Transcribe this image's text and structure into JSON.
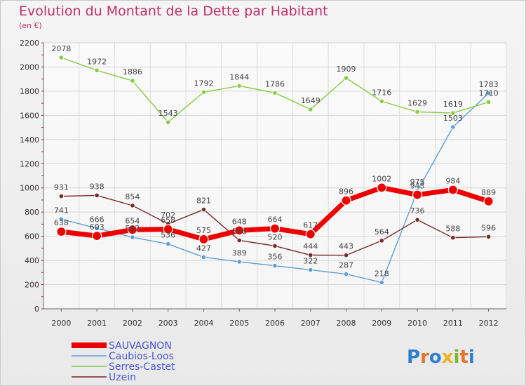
{
  "chart_data": {
    "type": "line",
    "title": "Evolution du Montant de la Dette par Habitant",
    "subtitle": "(en €)",
    "x": [
      "2000",
      "2001",
      "2002",
      "2003",
      "2004",
      "2005",
      "2006",
      "2007",
      "2008",
      "2009",
      "2010",
      "2011",
      "2012"
    ],
    "ylim": [
      0,
      2200
    ],
    "yticks": [
      0,
      200,
      400,
      600,
      800,
      1000,
      1200,
      1400,
      1600,
      1800,
      2000,
      2200
    ],
    "grid": true,
    "legend_position": "bottom-left",
    "series": [
      {
        "name": "SAUVAGNON",
        "color": "#ee0000",
        "emphasis": true,
        "values": [
          638,
          603,
          654,
          658,
          575,
          648,
          664,
          617,
          896,
          1002,
          943,
          984,
          889
        ]
      },
      {
        "name": "Caubios-Loos",
        "color": "#5c9ed8",
        "values": [
          741,
          666,
          592,
          536,
          427,
          389,
          356,
          322,
          287,
          218,
          975,
          1503,
          1783
        ]
      },
      {
        "name": "Serres-Castet",
        "color": "#88cc44",
        "values": [
          2078,
          1972,
          1886,
          1543,
          1792,
          1844,
          1786,
          1649,
          1909,
          1716,
          1629,
          1619,
          1710
        ]
      },
      {
        "name": "Uzein",
        "color": "#7a2828",
        "values": [
          931,
          938,
          854,
          702,
          821,
          566,
          520,
          444,
          443,
          564,
          736,
          588,
          596
        ]
      }
    ]
  },
  "logo_text": "Proxiti"
}
